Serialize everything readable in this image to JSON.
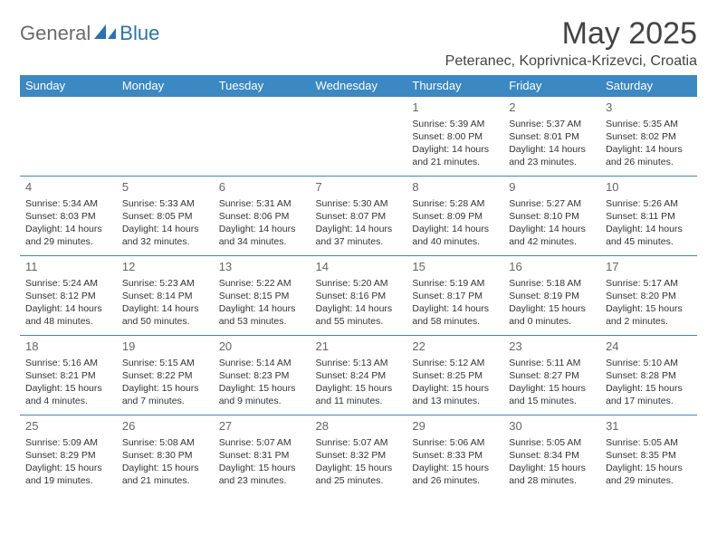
{
  "logo": {
    "part1": "General",
    "part2": "Blue"
  },
  "title": "May 2025",
  "subtitle": "Peteranec, Koprivnica-Krizevci, Croatia",
  "colors": {
    "header_bg": "#3b88c3",
    "header_text": "#ffffff",
    "border": "#3b88c3",
    "body_text": "#333333",
    "daynum": "#666666",
    "logo_gray": "#6a6a6a",
    "logo_blue": "#2a72b5",
    "background": "#ffffff"
  },
  "typography": {
    "title_fontsize": 34,
    "subtitle_fontsize": 16,
    "header_fontsize": 13,
    "daynum_fontsize": 13,
    "cell_fontsize": 10.5
  },
  "weekdays": [
    "Sunday",
    "Monday",
    "Tuesday",
    "Wednesday",
    "Thursday",
    "Friday",
    "Saturday"
  ],
  "weeks": [
    [
      null,
      null,
      null,
      null,
      {
        "n": "1",
        "sr": "Sunrise: 5:39 AM",
        "ss": "Sunset: 8:00 PM",
        "d1": "Daylight: 14 hours",
        "d2": "and 21 minutes."
      },
      {
        "n": "2",
        "sr": "Sunrise: 5:37 AM",
        "ss": "Sunset: 8:01 PM",
        "d1": "Daylight: 14 hours",
        "d2": "and 23 minutes."
      },
      {
        "n": "3",
        "sr": "Sunrise: 5:35 AM",
        "ss": "Sunset: 8:02 PM",
        "d1": "Daylight: 14 hours",
        "d2": "and 26 minutes."
      }
    ],
    [
      {
        "n": "4",
        "sr": "Sunrise: 5:34 AM",
        "ss": "Sunset: 8:03 PM",
        "d1": "Daylight: 14 hours",
        "d2": "and 29 minutes."
      },
      {
        "n": "5",
        "sr": "Sunrise: 5:33 AM",
        "ss": "Sunset: 8:05 PM",
        "d1": "Daylight: 14 hours",
        "d2": "and 32 minutes."
      },
      {
        "n": "6",
        "sr": "Sunrise: 5:31 AM",
        "ss": "Sunset: 8:06 PM",
        "d1": "Daylight: 14 hours",
        "d2": "and 34 minutes."
      },
      {
        "n": "7",
        "sr": "Sunrise: 5:30 AM",
        "ss": "Sunset: 8:07 PM",
        "d1": "Daylight: 14 hours",
        "d2": "and 37 minutes."
      },
      {
        "n": "8",
        "sr": "Sunrise: 5:28 AM",
        "ss": "Sunset: 8:09 PM",
        "d1": "Daylight: 14 hours",
        "d2": "and 40 minutes."
      },
      {
        "n": "9",
        "sr": "Sunrise: 5:27 AM",
        "ss": "Sunset: 8:10 PM",
        "d1": "Daylight: 14 hours",
        "d2": "and 42 minutes."
      },
      {
        "n": "10",
        "sr": "Sunrise: 5:26 AM",
        "ss": "Sunset: 8:11 PM",
        "d1": "Daylight: 14 hours",
        "d2": "and 45 minutes."
      }
    ],
    [
      {
        "n": "11",
        "sr": "Sunrise: 5:24 AM",
        "ss": "Sunset: 8:12 PM",
        "d1": "Daylight: 14 hours",
        "d2": "and 48 minutes."
      },
      {
        "n": "12",
        "sr": "Sunrise: 5:23 AM",
        "ss": "Sunset: 8:14 PM",
        "d1": "Daylight: 14 hours",
        "d2": "and 50 minutes."
      },
      {
        "n": "13",
        "sr": "Sunrise: 5:22 AM",
        "ss": "Sunset: 8:15 PM",
        "d1": "Daylight: 14 hours",
        "d2": "and 53 minutes."
      },
      {
        "n": "14",
        "sr": "Sunrise: 5:20 AM",
        "ss": "Sunset: 8:16 PM",
        "d1": "Daylight: 14 hours",
        "d2": "and 55 minutes."
      },
      {
        "n": "15",
        "sr": "Sunrise: 5:19 AM",
        "ss": "Sunset: 8:17 PM",
        "d1": "Daylight: 14 hours",
        "d2": "and 58 minutes."
      },
      {
        "n": "16",
        "sr": "Sunrise: 5:18 AM",
        "ss": "Sunset: 8:19 PM",
        "d1": "Daylight: 15 hours",
        "d2": "and 0 minutes."
      },
      {
        "n": "17",
        "sr": "Sunrise: 5:17 AM",
        "ss": "Sunset: 8:20 PM",
        "d1": "Daylight: 15 hours",
        "d2": "and 2 minutes."
      }
    ],
    [
      {
        "n": "18",
        "sr": "Sunrise: 5:16 AM",
        "ss": "Sunset: 8:21 PM",
        "d1": "Daylight: 15 hours",
        "d2": "and 4 minutes."
      },
      {
        "n": "19",
        "sr": "Sunrise: 5:15 AM",
        "ss": "Sunset: 8:22 PM",
        "d1": "Daylight: 15 hours",
        "d2": "and 7 minutes."
      },
      {
        "n": "20",
        "sr": "Sunrise: 5:14 AM",
        "ss": "Sunset: 8:23 PM",
        "d1": "Daylight: 15 hours",
        "d2": "and 9 minutes."
      },
      {
        "n": "21",
        "sr": "Sunrise: 5:13 AM",
        "ss": "Sunset: 8:24 PM",
        "d1": "Daylight: 15 hours",
        "d2": "and 11 minutes."
      },
      {
        "n": "22",
        "sr": "Sunrise: 5:12 AM",
        "ss": "Sunset: 8:25 PM",
        "d1": "Daylight: 15 hours",
        "d2": "and 13 minutes."
      },
      {
        "n": "23",
        "sr": "Sunrise: 5:11 AM",
        "ss": "Sunset: 8:27 PM",
        "d1": "Daylight: 15 hours",
        "d2": "and 15 minutes."
      },
      {
        "n": "24",
        "sr": "Sunrise: 5:10 AM",
        "ss": "Sunset: 8:28 PM",
        "d1": "Daylight: 15 hours",
        "d2": "and 17 minutes."
      }
    ],
    [
      {
        "n": "25",
        "sr": "Sunrise: 5:09 AM",
        "ss": "Sunset: 8:29 PM",
        "d1": "Daylight: 15 hours",
        "d2": "and 19 minutes."
      },
      {
        "n": "26",
        "sr": "Sunrise: 5:08 AM",
        "ss": "Sunset: 8:30 PM",
        "d1": "Daylight: 15 hours",
        "d2": "and 21 minutes."
      },
      {
        "n": "27",
        "sr": "Sunrise: 5:07 AM",
        "ss": "Sunset: 8:31 PM",
        "d1": "Daylight: 15 hours",
        "d2": "and 23 minutes."
      },
      {
        "n": "28",
        "sr": "Sunrise: 5:07 AM",
        "ss": "Sunset: 8:32 PM",
        "d1": "Daylight: 15 hours",
        "d2": "and 25 minutes."
      },
      {
        "n": "29",
        "sr": "Sunrise: 5:06 AM",
        "ss": "Sunset: 8:33 PM",
        "d1": "Daylight: 15 hours",
        "d2": "and 26 minutes."
      },
      {
        "n": "30",
        "sr": "Sunrise: 5:05 AM",
        "ss": "Sunset: 8:34 PM",
        "d1": "Daylight: 15 hours",
        "d2": "and 28 minutes."
      },
      {
        "n": "31",
        "sr": "Sunrise: 5:05 AM",
        "ss": "Sunset: 8:35 PM",
        "d1": "Daylight: 15 hours",
        "d2": "and 29 minutes."
      }
    ]
  ]
}
